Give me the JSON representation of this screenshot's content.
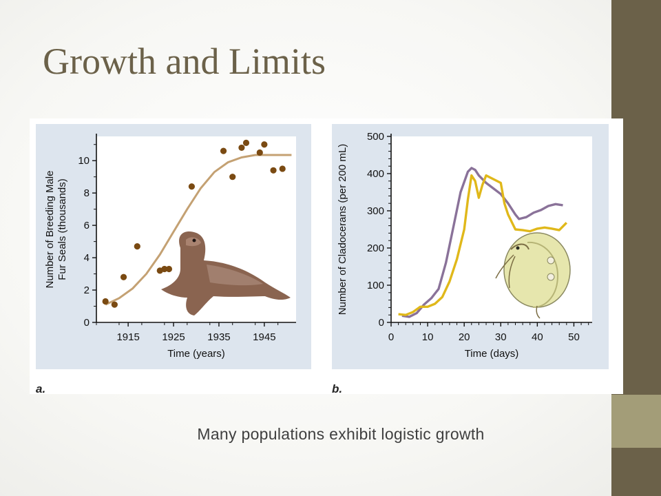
{
  "slide": {
    "title": "Growth and Limits",
    "caption": "Many populations exhibit logistic growth"
  },
  "colors": {
    "sidebar": "#6b6149",
    "sidebar_accent": "#a39d78",
    "title": "#6b6149",
    "panel_bg": "#dde5ee",
    "seal_curve": "#c4a173",
    "seal_points": "#7a4a12",
    "cladoceran_purple": "#8a7299",
    "cladoceran_yellow": "#e0b81a"
  },
  "chart_data": [
    {
      "type": "scatter",
      "panel_label": "a.",
      "xlabel": "Time (years)",
      "ylabel": [
        "Number of Breeding Male",
        "Fur Seals (thousands)"
      ],
      "xlim": [
        1908,
        1952
      ],
      "ylim": [
        0,
        11.5
      ],
      "xticks": [
        1915,
        1925,
        1935,
        1945
      ],
      "yticks": [
        0,
        2,
        4,
        6,
        8,
        10
      ],
      "series": [
        {
          "kind": "points",
          "x": [
            1910,
            1912,
            1914,
            1917,
            1922,
            1923,
            1924,
            1929,
            1936,
            1938,
            1940,
            1941,
            1944,
            1945,
            1947,
            1949
          ],
          "y": [
            1.3,
            1.1,
            2.8,
            4.7,
            3.2,
            3.3,
            3.3,
            8.4,
            10.6,
            9.0,
            10.8,
            11.1,
            10.5,
            11.0,
            9.4,
            9.5
          ]
        },
        {
          "kind": "curve",
          "x": [
            1910,
            1913,
            1916,
            1919,
            1922,
            1925,
            1928,
            1931,
            1934,
            1937,
            1940,
            1943,
            1946,
            1949,
            1951
          ],
          "y": [
            1.1,
            1.5,
            2.1,
            3.0,
            4.2,
            5.6,
            7.0,
            8.3,
            9.3,
            9.9,
            10.2,
            10.35,
            10.35,
            10.35,
            10.35
          ]
        }
      ]
    },
    {
      "type": "line",
      "panel_label": "b.",
      "xlabel": "Time (days)",
      "ylabel": "Number of Cladocerans (per 200 mL)",
      "xlim": [
        0,
        55
      ],
      "ylim": [
        0,
        500
      ],
      "xticks": [
        0,
        10,
        20,
        30,
        40,
        50
      ],
      "yticks": [
        0,
        100,
        200,
        300,
        400,
        500
      ],
      "series": [
        {
          "color_key": "cladoceran_purple",
          "x": [
            3,
            5,
            7,
            9,
            11,
            13,
            15,
            17,
            19,
            21,
            22,
            23,
            24,
            26,
            28,
            30,
            32,
            34,
            35,
            37,
            39,
            41,
            43,
            45,
            47
          ],
          "y": [
            18,
            15,
            25,
            48,
            65,
            90,
            160,
            255,
            350,
            405,
            415,
            410,
            395,
            375,
            360,
            345,
            320,
            290,
            278,
            283,
            295,
            302,
            313,
            318,
            315
          ]
        },
        {
          "color_key": "cladoceran_yellow",
          "x": [
            2,
            4,
            6,
            8,
            10,
            12,
            14,
            16,
            18,
            20,
            21,
            22,
            23,
            24,
            25,
            26,
            28,
            30,
            31,
            32,
            34,
            36,
            38,
            40,
            42,
            44,
            46,
            48
          ],
          "y": [
            22,
            20,
            28,
            42,
            42,
            50,
            68,
            110,
            170,
            250,
            330,
            395,
            380,
            335,
            370,
            395,
            385,
            375,
            320,
            290,
            250,
            248,
            245,
            252,
            255,
            252,
            248,
            268
          ]
        }
      ]
    }
  ]
}
